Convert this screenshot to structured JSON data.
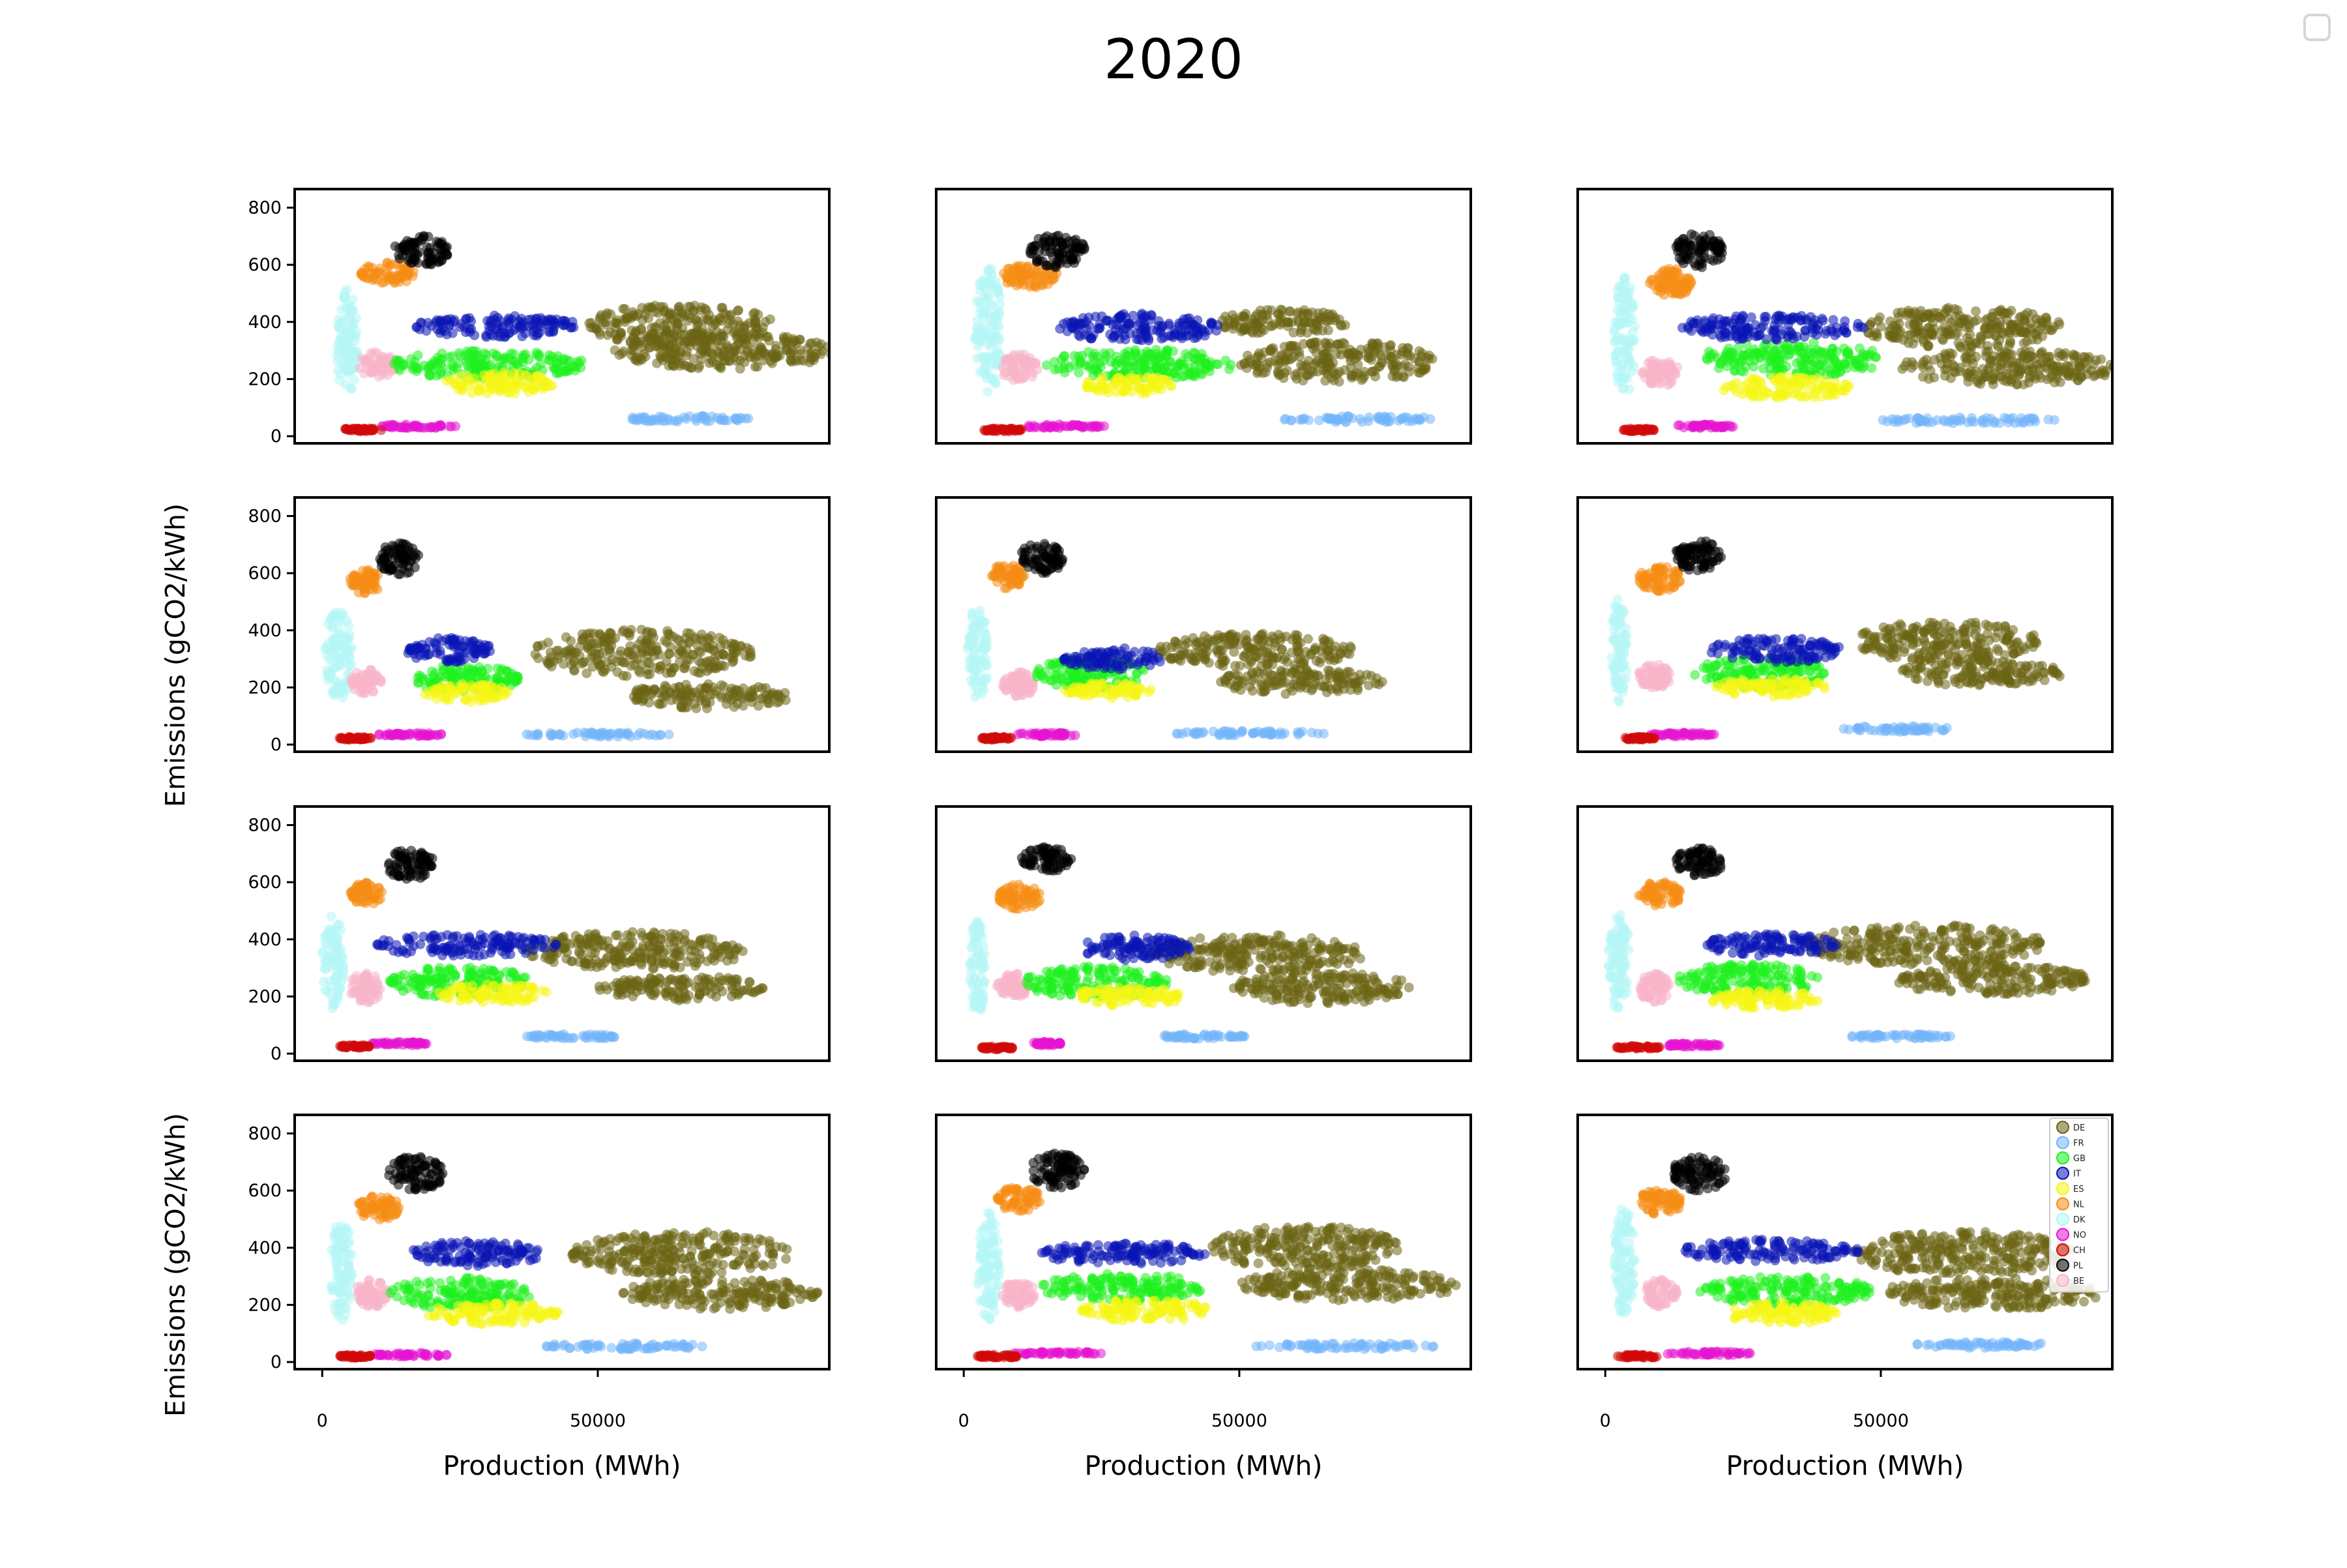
{
  "chart_data": {
    "type": "scatter",
    "title": "2020",
    "xlabel": "Production (MWh)",
    "ylabel": "Emissions (gCO2/kWh)",
    "xlim": [
      -5000,
      92000
    ],
    "ylim": [
      -25,
      865
    ],
    "x_ticks": [
      0,
      50000
    ],
    "y_ticks": [
      0,
      200,
      400,
      600,
      800
    ],
    "grid": false,
    "legend_position": "top-right of last panel",
    "layout": "4 rows x 3 columns of panels, one per month",
    "series": [
      {
        "name": "DE",
        "color": "#6b6414"
      },
      {
        "name": "FR",
        "color": "#73b4fa"
      },
      {
        "name": "GB",
        "color": "#1ef01e"
      },
      {
        "name": "IT",
        "color": "#0a14b4"
      },
      {
        "name": "ES",
        "color": "#f5f514"
      },
      {
        "name": "NL",
        "color": "#f58c14"
      },
      {
        "name": "DK",
        "color": "#b4f5f5"
      },
      {
        "name": "NO",
        "color": "#e614d2"
      },
      {
        "name": "CH",
        "color": "#d20a0a"
      },
      {
        "name": "PL",
        "color": "#000000"
      },
      {
        "name": "BE",
        "color": "#f8b4c8"
      }
    ],
    "panels": [
      {
        "DE": [
          [
            65000,
            390,
            17000,
            130
          ],
          [
            73000,
            300,
            20000,
            120
          ]
        ],
        "FR": [
          [
            66000,
            60,
            12000,
            20
          ]
        ],
        "GB": [
          [
            30000,
            250,
            18000,
            90
          ]
        ],
        "IT": [
          [
            32000,
            385,
            15000,
            70
          ]
        ],
        "ES": [
          [
            32000,
            185,
            10000,
            70
          ]
        ],
        "NL": [
          [
            12000,
            570,
            5000,
            70
          ]
        ],
        "DK": [
          [
            4500,
            330,
            2000,
            340
          ]
        ],
        "NO": [
          [
            17000,
            35,
            8000,
            12
          ]
        ],
        "CH": [
          [
            7000,
            22,
            4000,
            10
          ]
        ],
        "PL": [
          [
            18000,
            650,
            5000,
            100
          ]
        ],
        "BE": [
          [
            10000,
            250,
            3500,
            80
          ]
        ]
      },
      {
        "DE": [
          [
            58000,
            400,
            12000,
            80
          ],
          [
            68000,
            260,
            18000,
            130
          ]
        ],
        "FR": [
          [
            72000,
            60,
            14000,
            20
          ]
        ],
        "GB": [
          [
            32000,
            250,
            17000,
            100
          ]
        ],
        "IT": [
          [
            32000,
            380,
            15000,
            90
          ]
        ],
        "ES": [
          [
            30000,
            180,
            8000,
            60
          ]
        ],
        "NL": [
          [
            12000,
            560,
            5000,
            80
          ]
        ],
        "DK": [
          [
            4500,
            370,
            2500,
            400
          ]
        ],
        "NO": [
          [
            18000,
            35,
            8000,
            12
          ]
        ],
        "CH": [
          [
            7000,
            22,
            4000,
            10
          ]
        ],
        "PL": [
          [
            17000,
            650,
            5000,
            110
          ]
        ],
        "BE": [
          [
            10000,
            240,
            3500,
            90
          ]
        ]
      },
      {
        "DE": [
          [
            65000,
            380,
            18000,
            130
          ],
          [
            73000,
            240,
            20000,
            110
          ]
        ],
        "FR": [
          [
            66000,
            55,
            16000,
            20
          ]
        ],
        "GB": [
          [
            34000,
            270,
            17000,
            110
          ]
        ],
        "IT": [
          [
            30000,
            380,
            17000,
            80
          ]
        ],
        "ES": [
          [
            33000,
            170,
            12000,
            70
          ]
        ],
        "NL": [
          [
            12000,
            540,
            4000,
            90
          ]
        ],
        "DK": [
          [
            3500,
            350,
            2000,
            380
          ]
        ],
        "NO": [
          [
            18000,
            35,
            6000,
            12
          ]
        ],
        "CH": [
          [
            6000,
            22,
            3000,
            10
          ]
        ],
        "PL": [
          [
            17000,
            650,
            4500,
            110
          ]
        ],
        "BE": [
          [
            10000,
            220,
            3500,
            90
          ]
        ]
      },
      {
        "DE": [
          [
            58000,
            320,
            20000,
            150
          ],
          [
            70000,
            170,
            15000,
            80
          ]
        ],
        "FR": [
          [
            50000,
            35,
            13000,
            15
          ]
        ],
        "GB": [
          [
            26000,
            230,
            10000,
            90
          ]
        ],
        "IT": [
          [
            23000,
            330,
            8000,
            80
          ]
        ],
        "ES": [
          [
            26000,
            180,
            8000,
            60
          ]
        ],
        "NL": [
          [
            8000,
            570,
            3000,
            80
          ]
        ],
        "DK": [
          [
            3000,
            320,
            2500,
            300
          ]
        ],
        "NO": [
          [
            16000,
            35,
            6000,
            10
          ]
        ],
        "CH": [
          [
            6000,
            22,
            3000,
            10
          ]
        ],
        "PL": [
          [
            14000,
            650,
            4000,
            100
          ]
        ],
        "BE": [
          [
            8000,
            220,
            3000,
            80
          ]
        ]
      },
      {
        "DE": [
          [
            53000,
            330,
            18000,
            110
          ],
          [
            61000,
            220,
            15000,
            80
          ]
        ],
        "FR": [
          [
            52000,
            40,
            14000,
            15
          ]
        ],
        "GB": [
          [
            23000,
            250,
            10000,
            100
          ]
        ],
        "IT": [
          [
            27000,
            300,
            9000,
            70
          ]
        ],
        "ES": [
          [
            26000,
            190,
            8000,
            50
          ]
        ],
        "NL": [
          [
            8000,
            590,
            3000,
            80
          ]
        ],
        "DK": [
          [
            2500,
            320,
            2000,
            300
          ]
        ],
        "NO": [
          [
            15000,
            35,
            6000,
            12
          ]
        ],
        "CH": [
          [
            6000,
            22,
            3000,
            10
          ]
        ],
        "PL": [
          [
            14000,
            650,
            4000,
            100
          ]
        ],
        "BE": [
          [
            10000,
            210,
            3000,
            80
          ]
        ]
      },
      {
        "DE": [
          [
            62000,
            360,
            17000,
            130
          ],
          [
            68000,
            250,
            15000,
            80
          ]
        ],
        "FR": [
          [
            53000,
            55,
            10000,
            20
          ]
        ],
        "GB": [
          [
            28000,
            250,
            12000,
            100
          ]
        ],
        "IT": [
          [
            31000,
            330,
            12000,
            80
          ]
        ],
        "ES": [
          [
            30000,
            200,
            10000,
            60
          ]
        ],
        "NL": [
          [
            10000,
            580,
            4000,
            80
          ]
        ],
        "DK": [
          [
            2500,
            330,
            1500,
            330
          ]
        ],
        "NO": [
          [
            14000,
            35,
            6000,
            12
          ]
        ],
        "CH": [
          [
            6000,
            22,
            3000,
            10
          ]
        ],
        "PL": [
          [
            17000,
            660,
            4500,
            100
          ]
        ],
        "BE": [
          [
            9000,
            240,
            3000,
            80
          ]
        ]
      },
      {
        "DE": [
          [
            57000,
            360,
            20000,
            120
          ],
          [
            65000,
            230,
            15000,
            80
          ]
        ],
        "FR": [
          [
            45000,
            60,
            9000,
            15
          ]
        ],
        "GB": [
          [
            25000,
            250,
            13000,
            100
          ]
        ],
        "IT": [
          [
            26000,
            380,
            17000,
            70
          ]
        ],
        "ES": [
          [
            31000,
            210,
            10000,
            60
          ]
        ],
        "NL": [
          [
            8000,
            560,
            3000,
            70
          ]
        ],
        "DK": [
          [
            2000,
            320,
            2000,
            300
          ]
        ],
        "NO": [
          [
            14000,
            35,
            5000,
            12
          ]
        ],
        "CH": [
          [
            6000,
            25,
            3000,
            10
          ]
        ],
        "PL": [
          [
            16000,
            660,
            4500,
            100
          ]
        ],
        "BE": [
          [
            8000,
            230,
            3000,
            100
          ]
        ]
      },
      {
        "DE": [
          [
            53000,
            350,
            20000,
            120
          ],
          [
            65000,
            230,
            17000,
            100
          ]
        ],
        "FR": [
          [
            43000,
            60,
            8000,
            15
          ]
        ],
        "GB": [
          [
            24000,
            250,
            13000,
            100
          ]
        ],
        "IT": [
          [
            31000,
            370,
            10000,
            80
          ]
        ],
        "ES": [
          [
            30000,
            200,
            10000,
            60
          ]
        ],
        "NL": [
          [
            10000,
            550,
            4000,
            80
          ]
        ],
        "DK": [
          [
            2500,
            300,
            1500,
            300
          ]
        ],
        "NO": [
          [
            15000,
            35,
            3000,
            12
          ]
        ],
        "CH": [
          [
            6000,
            20,
            3000,
            10
          ]
        ],
        "PL": [
          [
            15000,
            680,
            4500,
            80
          ]
        ],
        "BE": [
          [
            9000,
            240,
            3000,
            80
          ]
        ]
      },
      {
        "DE": [
          [
            58000,
            380,
            22000,
            130
          ],
          [
            70000,
            260,
            18000,
            100
          ]
        ],
        "FR": [
          [
            53000,
            60,
            10000,
            15
          ]
        ],
        "GB": [
          [
            26000,
            260,
            13000,
            100
          ]
        ],
        "IT": [
          [
            30000,
            380,
            12000,
            70
          ]
        ],
        "ES": [
          [
            29000,
            190,
            10000,
            60
          ]
        ],
        "NL": [
          [
            10000,
            560,
            4000,
            80
          ]
        ],
        "DK": [
          [
            2500,
            320,
            2000,
            320
          ]
        ],
        "NO": [
          [
            16000,
            30,
            5000,
            12
          ]
        ],
        "CH": [
          [
            6000,
            22,
            4000,
            10
          ]
        ],
        "PL": [
          [
            17000,
            670,
            4500,
            90
          ]
        ],
        "BE": [
          [
            9000,
            230,
            3000,
            90
          ]
        ]
      },
      {
        "DE": [
          [
            65000,
            380,
            20000,
            140
          ],
          [
            72000,
            240,
            18000,
            100
          ]
        ],
        "FR": [
          [
            54000,
            55,
            16000,
            20
          ]
        ],
        "GB": [
          [
            25000,
            240,
            13000,
            100
          ]
        ],
        "IT": [
          [
            28000,
            380,
            12000,
            80
          ]
        ],
        "ES": [
          [
            31000,
            170,
            12000,
            70
          ]
        ],
        "NL": [
          [
            10000,
            540,
            4000,
            80
          ]
        ],
        "DK": [
          [
            3500,
            320,
            2000,
            320
          ]
        ],
        "NO": [
          [
            16000,
            25,
            7000,
            12
          ]
        ],
        "CH": [
          [
            6000,
            20,
            3000,
            10
          ]
        ],
        "PL": [
          [
            17000,
            660,
            5000,
            110
          ]
        ],
        "BE": [
          [
            9000,
            240,
            3000,
            90
          ]
        ]
      },
      {
        "DE": [
          [
            62000,
            400,
            17000,
            140
          ],
          [
            70000,
            270,
            20000,
            100
          ]
        ],
        "FR": [
          [
            70000,
            55,
            17000,
            20
          ]
        ],
        "GB": [
          [
            29000,
            260,
            15000,
            90
          ]
        ],
        "IT": [
          [
            29000,
            380,
            15000,
            70
          ]
        ],
        "ES": [
          [
            33000,
            180,
            12000,
            70
          ]
        ],
        "NL": [
          [
            10000,
            570,
            4000,
            80
          ]
        ],
        "DK": [
          [
            4500,
            330,
            2000,
            350
          ]
        ],
        "NO": [
          [
            17000,
            30,
            8000,
            12
          ]
        ],
        "CH": [
          [
            6000,
            20,
            4000,
            10
          ]
        ],
        "PL": [
          [
            17000,
            670,
            5000,
            110
          ]
        ],
        "BE": [
          [
            10000,
            240,
            3000,
            90
          ]
        ]
      },
      {
        "DE": [
          [
            65000,
            380,
            20000,
            140
          ],
          [
            70000,
            240,
            20000,
            100
          ]
        ],
        "FR": [
          [
            68000,
            60,
            13000,
            20
          ]
        ],
        "GB": [
          [
            33000,
            250,
            16000,
            90
          ]
        ],
        "IT": [
          [
            30000,
            390,
            16000,
            70
          ]
        ],
        "ES": [
          [
            32000,
            170,
            10000,
            70
          ]
        ],
        "NL": [
          [
            10000,
            560,
            4000,
            80
          ]
        ],
        "DK": [
          [
            3500,
            350,
            2000,
            350
          ]
        ],
        "NO": [
          [
            19000,
            30,
            8000,
            12
          ]
        ],
        "CH": [
          [
            6000,
            20,
            4000,
            10
          ]
        ],
        "PL": [
          [
            17000,
            660,
            5000,
            110
          ]
        ],
        "BE": [
          [
            10000,
            240,
            3000,
            90
          ]
        ]
      }
    ]
  }
}
